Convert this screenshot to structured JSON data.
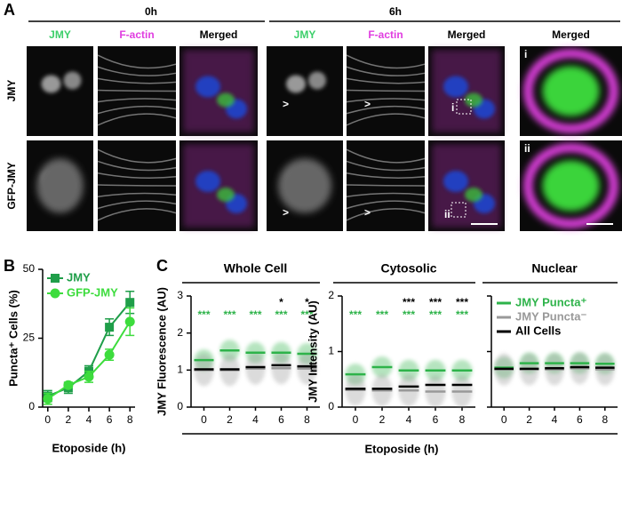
{
  "figure": {
    "panel_a": {
      "label": "A",
      "groups": [
        "0h",
        "6h"
      ],
      "columns": [
        "JMY",
        "F-actin",
        "Merged",
        "JMY",
        "F-actin",
        "Merged",
        "Merged"
      ],
      "rows": [
        "JMY",
        "GFP-JMY"
      ],
      "arrowheads": [
        ">",
        ">",
        ">",
        ">"
      ],
      "insets": [
        "i",
        "ii",
        "i",
        "ii"
      ]
    },
    "panel_b_label": "B",
    "panel_c_label": "C",
    "panel_c_xlabel": "Etoposide (h)"
  },
  "chart_data": [
    {
      "type": "line",
      "xlabel": "Etoposide (h)",
      "ylabel": "Puncta⁺ Cells (%)",
      "x": [
        0,
        2,
        4,
        6,
        8
      ],
      "xlim": [
        -0.5,
        8.5
      ],
      "xticks": [
        0,
        2,
        4,
        6,
        8
      ],
      "ylim": [
        0,
        50
      ],
      "yticks": [
        0,
        25,
        50
      ],
      "legend": "upper left",
      "series": [
        {
          "name": "JMY",
          "color": "#1f9e49",
          "marker": "square",
          "values": [
            4,
            7,
            13,
            29,
            38
          ],
          "errors": [
            2,
            2,
            2,
            3,
            4
          ]
        },
        {
          "name": "GFP-JMY",
          "color": "#3ddc3d",
          "marker": "circle",
          "values": [
            3,
            8,
            11,
            19,
            31
          ],
          "errors": [
            2,
            1,
            2,
            2,
            5
          ]
        }
      ]
    },
    {
      "type": "strip",
      "title": "Whole Cell",
      "ylabel": "JMY Fluorescence (AU)",
      "categories": [
        "0",
        "2",
        "4",
        "6",
        "8"
      ],
      "ylim": [
        0,
        3
      ],
      "yticks": [
        0,
        1,
        2,
        3
      ],
      "series": [
        {
          "name": "JMY Puncta⁺",
          "color": "#2eb34a",
          "values": [
            1.27,
            1.53,
            1.47,
            1.47,
            1.44
          ]
        },
        {
          "name": "JMY Puncta⁻",
          "color": "#999999",
          "values": [
            1.0,
            1.0,
            1.04,
            1.05,
            1.04
          ]
        },
        {
          "name": "All Cells",
          "color": "#000000",
          "values": [
            1.02,
            1.02,
            1.08,
            1.13,
            1.1
          ]
        }
      ],
      "annotations": [
        {
          "color": "#2eb34a",
          "labels": [
            "***",
            "***",
            "***",
            "***",
            "***"
          ]
        },
        {
          "color": "#000000",
          "labels": [
            null,
            null,
            null,
            "*",
            "*"
          ]
        }
      ]
    },
    {
      "type": "strip",
      "title": "Cytosolic",
      "ylabel": "JMY Intensity (AU)",
      "categories": [
        "0",
        "2",
        "4",
        "6",
        "8"
      ],
      "ylim": [
        0,
        2
      ],
      "yticks": [
        0,
        1,
        2
      ],
      "series": [
        {
          "name": "JMY Puncta⁺",
          "color": "#2eb34a",
          "values": [
            0.59,
            0.72,
            0.66,
            0.66,
            0.66
          ]
        },
        {
          "name": "JMY Puncta⁻",
          "color": "#999999",
          "values": [
            0.31,
            0.3,
            0.3,
            0.28,
            0.28
          ]
        },
        {
          "name": "All Cells",
          "color": "#000000",
          "values": [
            0.33,
            0.33,
            0.37,
            0.4,
            0.4
          ]
        }
      ],
      "annotations": [
        {
          "color": "#2eb34a",
          "labels": [
            "***",
            "***",
            "***",
            "***",
            "***"
          ]
        },
        {
          "color": "#000000",
          "labels": [
            null,
            null,
            "***",
            "***",
            "***"
          ]
        }
      ]
    },
    {
      "type": "strip",
      "title": "Nuclear",
      "ytick_labels": false,
      "legend": "upper right",
      "categories": [
        "0",
        "2",
        "4",
        "6",
        "8"
      ],
      "ylim": [
        0,
        2
      ],
      "yticks": [
        0,
        1,
        2
      ],
      "series": [
        {
          "name": "JMY Puncta⁺",
          "color": "#2eb34a",
          "values": [
            0.71,
            0.79,
            0.79,
            0.79,
            0.78
          ]
        },
        {
          "name": "JMY Puncta⁻",
          "color": "#999999",
          "values": [
            0.68,
            0.68,
            0.68,
            0.7,
            0.68
          ]
        },
        {
          "name": "All Cells",
          "color": "#000000",
          "values": [
            0.69,
            0.69,
            0.7,
            0.72,
            0.71
          ]
        }
      ]
    }
  ]
}
